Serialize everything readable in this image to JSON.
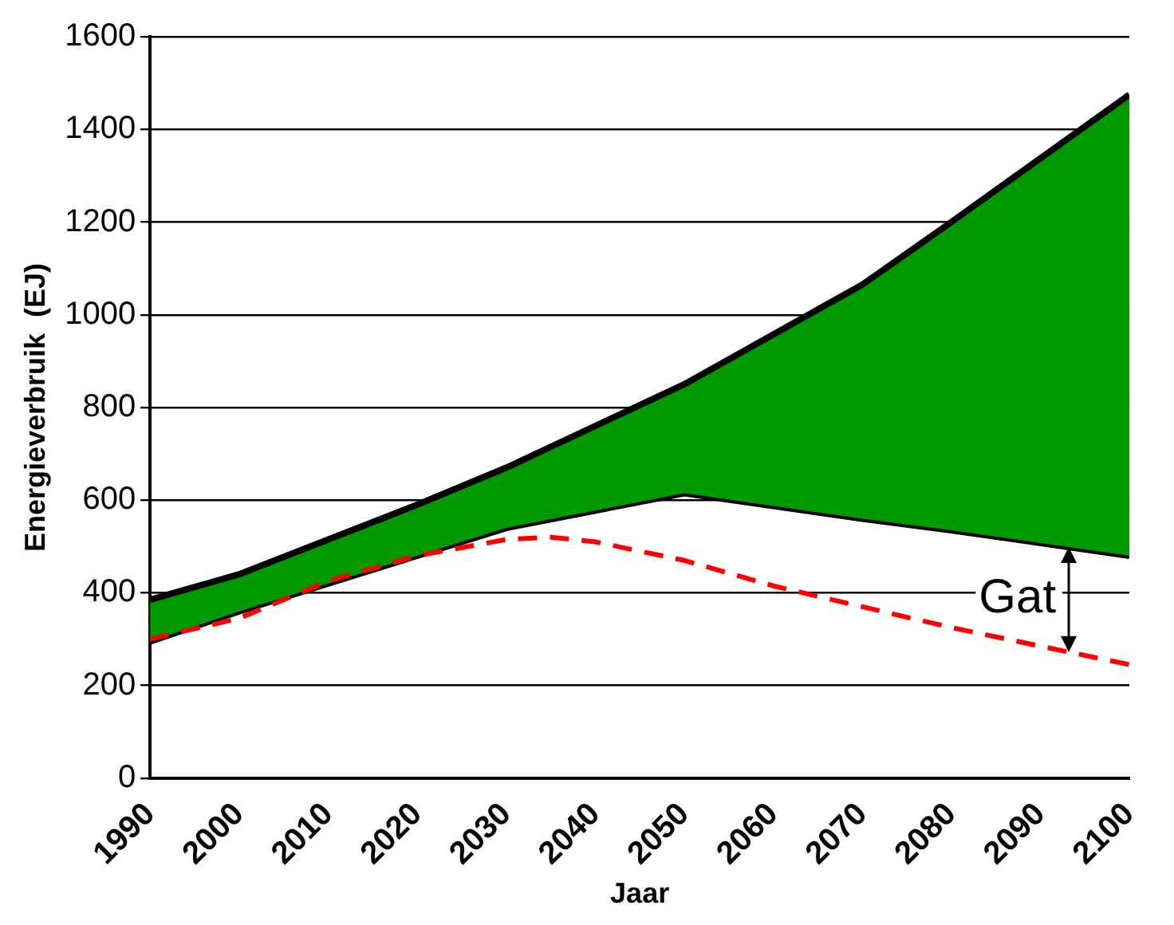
{
  "chart_data": {
    "type": "line",
    "xlabel": "Jaar",
    "ylabel": "Energieverbruik  (EJ)",
    "xlim": [
      1990,
      2100
    ],
    "xticks": [
      1990,
      2000,
      2010,
      2020,
      2030,
      2040,
      2050,
      2060,
      2070,
      2080,
      2090,
      2100
    ],
    "ylim": [
      0,
      1600
    ],
    "yticks": [
      0,
      200,
      400,
      600,
      800,
      1000,
      1200,
      1400,
      1600
    ],
    "grid": "y",
    "series": [
      {
        "color": "#000000",
        "x": [
          1990,
          2000,
          2020,
          2030,
          2050,
          2070,
          2080,
          2100
        ],
        "values": [
          295,
          360,
          480,
          540,
          615,
          560,
          535,
          480
        ]
      },
      {
        "type": "area",
        "color": "#009900",
        "x": [
          1990,
          2000,
          2020,
          2030,
          2050,
          2070,
          2080,
          2100
        ],
        "values": [
          385,
          440,
          590,
          670,
          850,
          1065,
          1200,
          1475
        ]
      },
      {
        "color": "#ff0000",
        "line_style": "dashed",
        "x": [
          1990,
          2000,
          2010,
          2020,
          2030,
          2035,
          2040,
          2050,
          2060,
          2070,
          2080,
          2090,
          2100
        ],
        "values": [
          300,
          345,
          425,
          480,
          515,
          520,
          510,
          470,
          415,
          370,
          325,
          285,
          245
        ]
      }
    ],
    "annotations": [
      "Gat"
    ]
  }
}
